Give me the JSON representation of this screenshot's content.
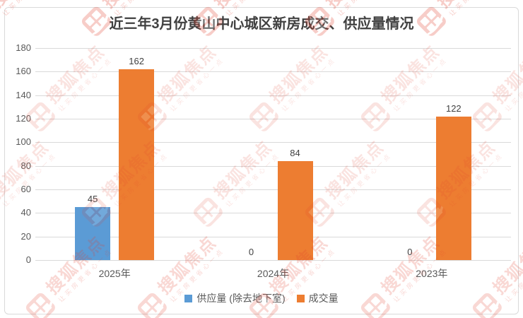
{
  "frame": {
    "border_color": "#D9D9D9"
  },
  "watermark": {
    "brand": "搜狐焦点",
    "slogan": "让买房更省心一点",
    "color": "#E2402F"
  },
  "chart_data": {
    "type": "bar",
    "title": "近三年3月份黄山中心城区新房成交、供应量情况",
    "categories": [
      "2025年",
      "2024年",
      "2023年"
    ],
    "series": [
      {
        "name": "供应量 (除去地下室)",
        "color": "#5B9BD5",
        "values": [
          45,
          0,
          0
        ]
      },
      {
        "name": "成交量",
        "color": "#ED7D31",
        "values": [
          162,
          84,
          122
        ]
      }
    ],
    "ylim": [
      0,
      180
    ],
    "yticks": [
      0,
      20,
      40,
      60,
      80,
      100,
      120,
      140,
      160,
      180
    ],
    "grid": true,
    "legend_position": "bottom",
    "value_labels": [
      "45",
      "162",
      "0",
      "84",
      "0",
      "122"
    ],
    "xlabel": "",
    "ylabel": "",
    "title_color": "#404040",
    "axis_text_color": "#595959",
    "value_label_color": "#404040",
    "gridline_color": "#D9D9D9",
    "background": "#FFFFFF"
  }
}
